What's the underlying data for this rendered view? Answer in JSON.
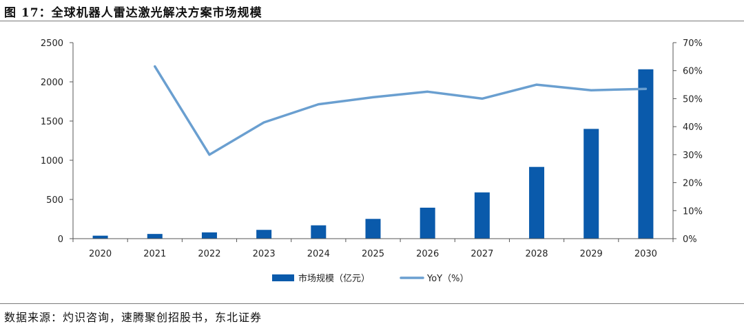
{
  "figure": {
    "title": "图 17：全球机器人雷达激光解决方案市场规模",
    "source": "数据来源：灼识咨询，速腾聚创招股书，东北证券"
  },
  "colors": {
    "bar": "#0a5aab",
    "line": "#6a9fd0",
    "axis": "#555555"
  },
  "chart_data": {
    "type": "bar+line",
    "categories": [
      "2020",
      "2021",
      "2022",
      "2023",
      "2024",
      "2025",
      "2026",
      "2027",
      "2028",
      "2029",
      "2030"
    ],
    "series": [
      {
        "name": "市场规模（亿元）",
        "type": "bar",
        "axis": "left",
        "values": [
          38,
          60,
          80,
          112,
          170,
          252,
          395,
          590,
          915,
          1400,
          2160
        ]
      },
      {
        "name": "YoY（%）",
        "type": "line",
        "axis": "right",
        "values": [
          null,
          61.5,
          30.0,
          41.5,
          48.0,
          50.5,
          52.5,
          50.0,
          55.0,
          53.0,
          53.5
        ]
      }
    ],
    "left_axis": {
      "ylim": [
        0,
        2500
      ],
      "ticks": [
        "0",
        "500",
        "1000",
        "1500",
        "2000",
        "2500"
      ]
    },
    "right_axis": {
      "ylim": [
        0,
        70
      ],
      "ticks": [
        "0%",
        "10%",
        "20%",
        "30%",
        "40%",
        "50%",
        "60%",
        "70%"
      ]
    },
    "grid": false,
    "legend_position": "bottom"
  }
}
